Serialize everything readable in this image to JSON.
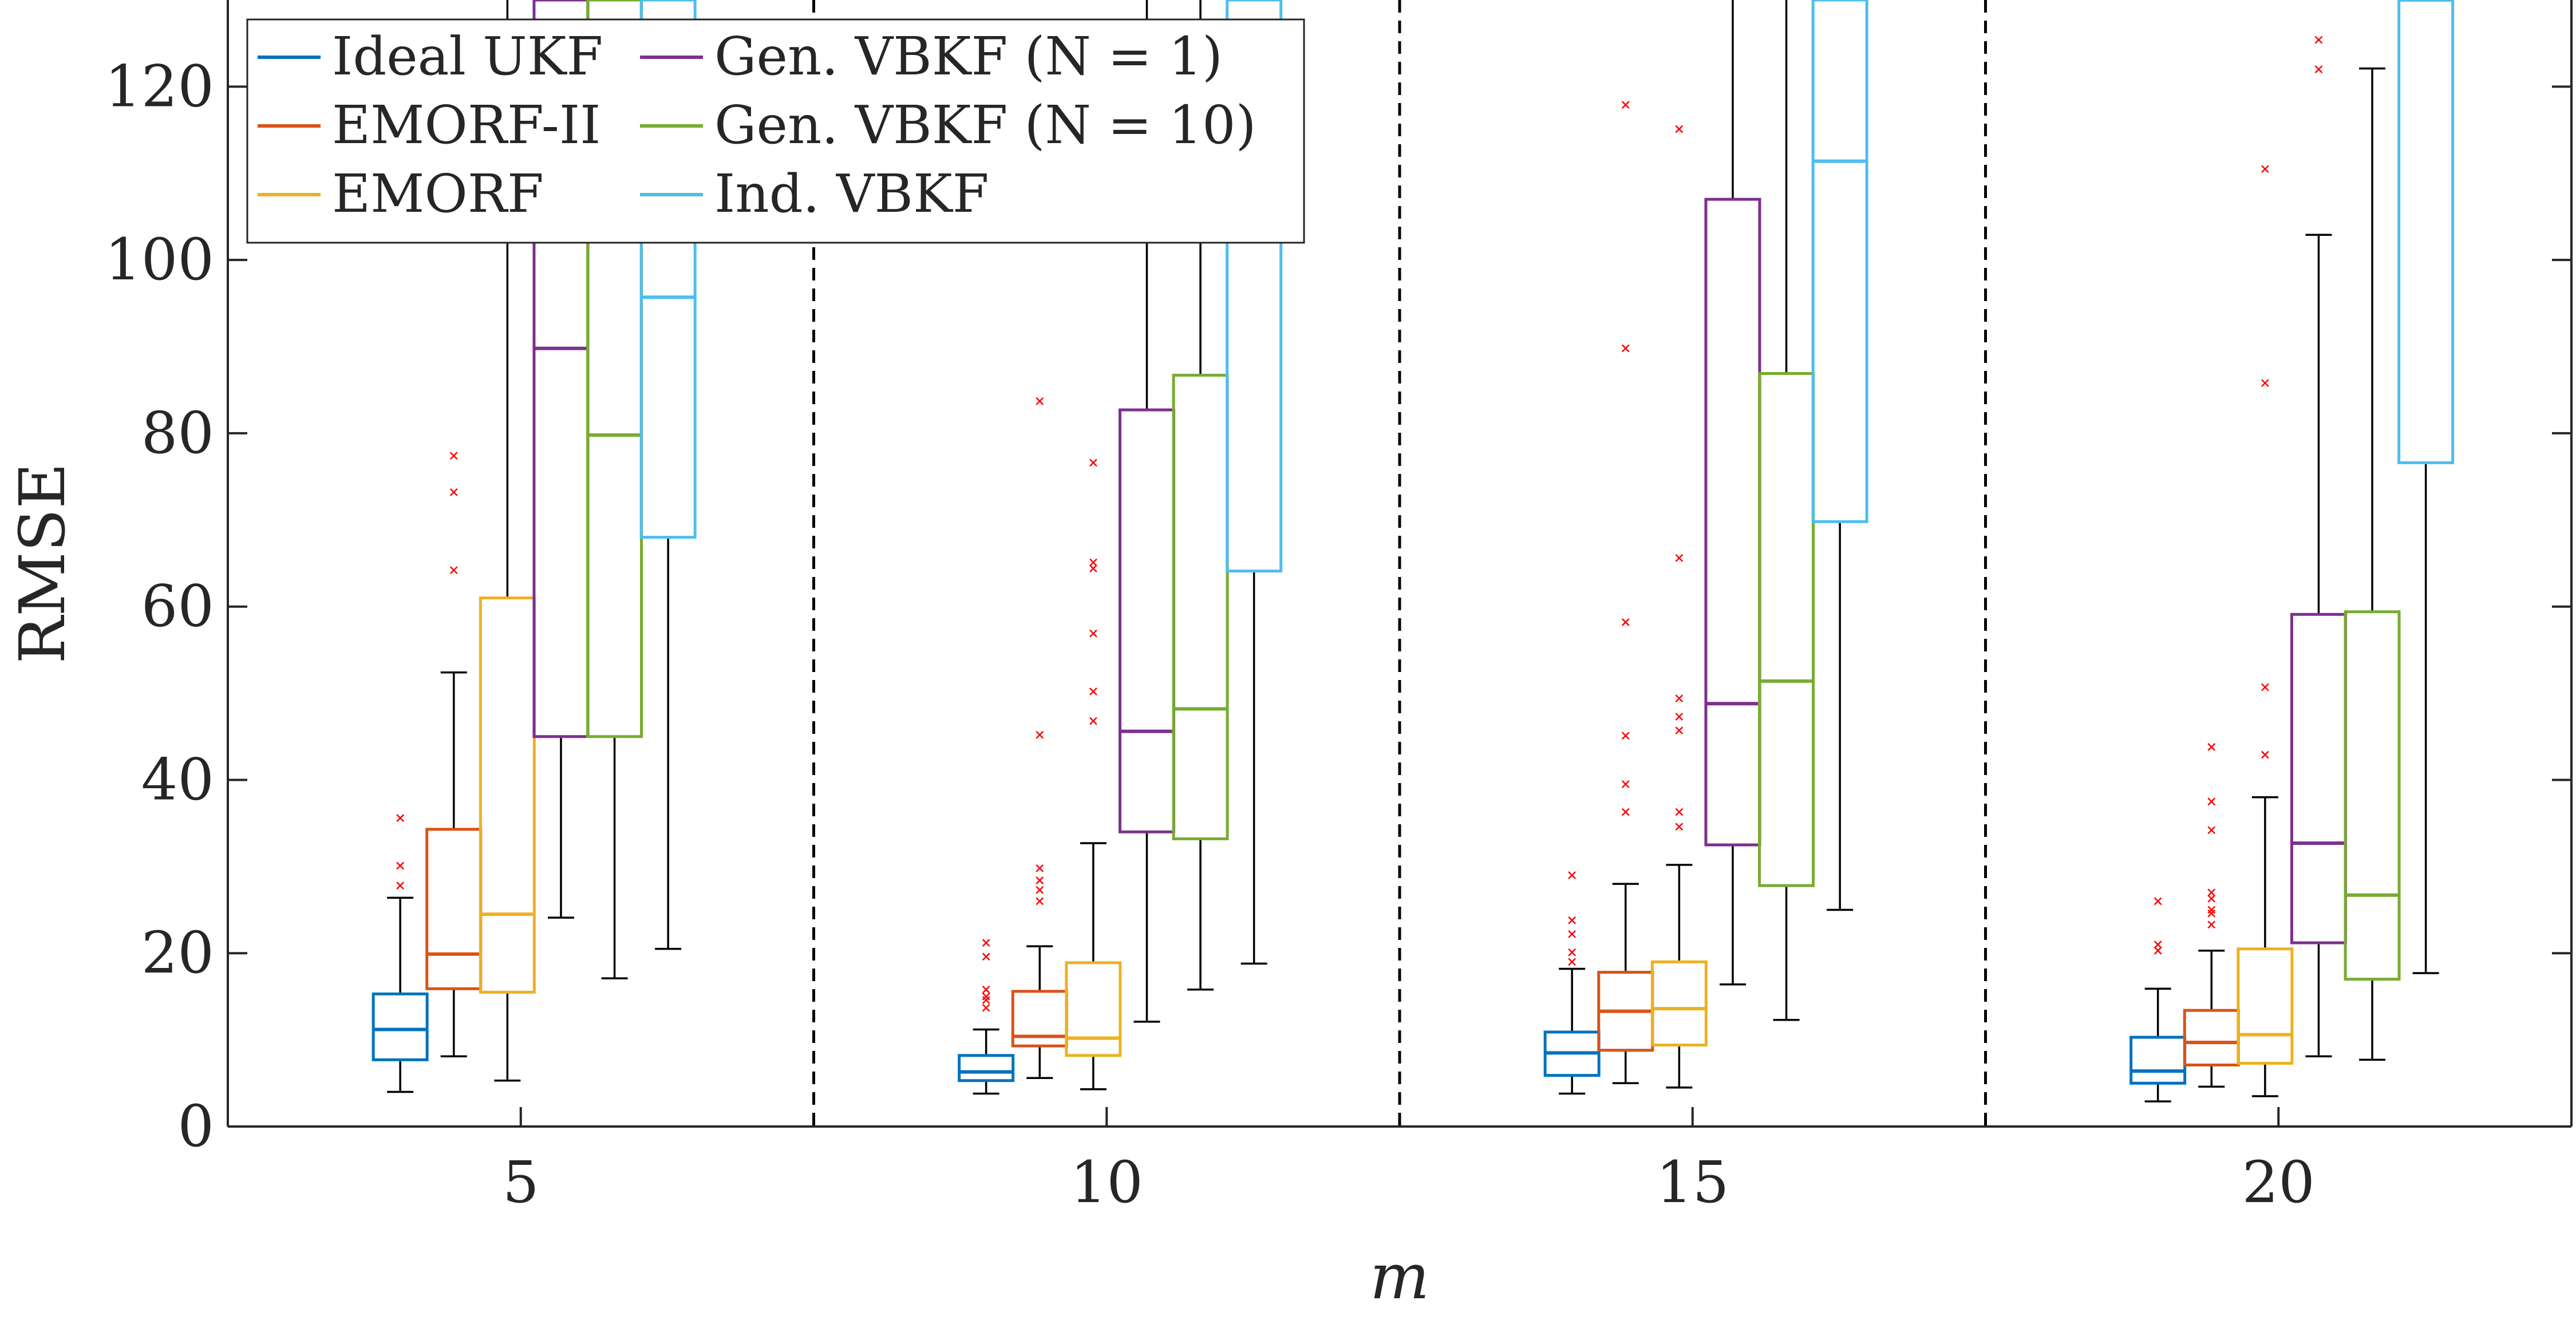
{
  "chart_data": {
    "type": "box",
    "xlabel": "m",
    "ylabel": "RMSE",
    "ylim": [
      0,
      130
    ],
    "yticks": [
      0,
      20,
      40,
      60,
      80,
      100,
      120
    ],
    "groups": [
      "5",
      "10",
      "15",
      "20"
    ],
    "separators_between_groups": true,
    "grid": false,
    "legend": {
      "placement": "top-left",
      "columns": 2
    },
    "series": [
      {
        "name": "Ideal UKF",
        "color": "#0072BD",
        "boxes": [
          {
            "lower_whisker": 4.0,
            "q1": 7.7,
            "median": 11.2,
            "q3": 15.3,
            "upper_whisker": 26.4,
            "outliers": [
              27.8,
              30.1,
              35.6
            ]
          },
          {
            "lower_whisker": 3.8,
            "q1": 5.3,
            "median": 6.3,
            "q3": 8.2,
            "upper_whisker": 11.2,
            "outliers": [
              13.7,
              14.6,
              15.0,
              15.8,
              19.6,
              21.2
            ]
          },
          {
            "lower_whisker": 3.8,
            "q1": 5.9,
            "median": 8.5,
            "q3": 10.9,
            "upper_whisker": 18.2,
            "outliers": [
              19.0,
              20.1,
              22.2,
              23.8,
              29.0
            ]
          },
          {
            "lower_whisker": 2.9,
            "q1": 5.0,
            "median": 6.4,
            "q3": 10.3,
            "upper_whisker": 15.9,
            "outliers": [
              20.3,
              21.0,
              26.0
            ]
          }
        ]
      },
      {
        "name": "EMORF-II",
        "color": "#D95319",
        "boxes": [
          {
            "lower_whisker": 8.1,
            "q1": 15.9,
            "median": 19.9,
            "q3": 34.3,
            "upper_whisker": 52.4,
            "outliers": [
              64.2,
              73.2,
              77.4
            ]
          },
          {
            "lower_whisker": 5.6,
            "q1": 9.3,
            "median": 10.4,
            "q3": 15.6,
            "upper_whisker": 20.8,
            "outliers": [
              26.0,
              27.3,
              28.4,
              29.8,
              45.2,
              83.7
            ]
          },
          {
            "lower_whisker": 5.0,
            "q1": 8.8,
            "median": 13.3,
            "q3": 17.8,
            "upper_whisker": 28.0,
            "outliers": [
              36.3,
              39.5,
              45.1,
              58.2,
              89.8,
              117.9
            ]
          },
          {
            "lower_whisker": 4.6,
            "q1": 7.1,
            "median": 9.7,
            "q3": 13.4,
            "upper_whisker": 20.3,
            "outliers": [
              23.3,
              24.6,
              25.0,
              26.3,
              27.0,
              34.2,
              37.5,
              43.8
            ]
          }
        ]
      },
      {
        "name": "EMORF",
        "color": "#EDB120",
        "boxes": [
          {
            "lower_whisker": 5.3,
            "q1": 15.5,
            "median": 24.5,
            "q3": 61.0,
            "upper_whisker": 130,
            "outliers": []
          },
          {
            "lower_whisker": 4.3,
            "q1": 8.2,
            "median": 10.2,
            "q3": 18.9,
            "upper_whisker": 32.7,
            "outliers": [
              46.8,
              50.2,
              56.9,
              64.4,
              65.1,
              76.6
            ]
          },
          {
            "lower_whisker": 4.5,
            "q1": 9.4,
            "median": 13.6,
            "q3": 19.0,
            "upper_whisker": 30.2,
            "outliers": [
              34.6,
              36.3,
              45.7,
              47.3,
              49.4,
              65.6,
              115.1
            ]
          },
          {
            "lower_whisker": 3.5,
            "q1": 7.3,
            "median": 10.6,
            "q3": 20.5,
            "upper_whisker": 38.0,
            "outliers": [
              42.9,
              50.7,
              85.8,
              110.5
            ]
          }
        ]
      },
      {
        "name": "Gen. VBKF (N = 1)",
        "color": "#7E2F8E",
        "boxes": [
          {
            "lower_whisker": 24.1,
            "q1": 45.0,
            "median": 89.8,
            "q3": 130,
            "upper_whisker": 130,
            "outliers": []
          },
          {
            "lower_whisker": 12.1,
            "q1": 34.0,
            "median": 45.6,
            "q3": 82.7,
            "upper_whisker": 130,
            "outliers": []
          },
          {
            "lower_whisker": 16.4,
            "q1": 32.5,
            "median": 48.8,
            "q3": 107.0,
            "upper_whisker": 130,
            "outliers": []
          },
          {
            "lower_whisker": 8.1,
            "q1": 21.2,
            "median": 32.7,
            "q3": 59.1,
            "upper_whisker": 102.9,
            "outliers": [
              122.0,
              125.4
            ]
          }
        ]
      },
      {
        "name": "Gen. VBKF (N = 10)",
        "color": "#77AC30",
        "boxes": [
          {
            "lower_whisker": 17.1,
            "q1": 45.0,
            "median": 79.8,
            "q3": 130,
            "upper_whisker": 130,
            "outliers": []
          },
          {
            "lower_whisker": 15.8,
            "q1": 33.2,
            "median": 48.2,
            "q3": 86.7,
            "upper_whisker": 130,
            "outliers": []
          },
          {
            "lower_whisker": 12.3,
            "q1": 27.8,
            "median": 51.4,
            "q3": 86.9,
            "upper_whisker": 130,
            "outliers": []
          },
          {
            "lower_whisker": 7.7,
            "q1": 17.0,
            "median": 26.7,
            "q3": 59.4,
            "upper_whisker": 122.1,
            "outliers": []
          }
        ]
      },
      {
        "name": "Ind. VBKF",
        "color": "#4DBEEE",
        "boxes": [
          {
            "lower_whisker": 20.5,
            "q1": 68.0,
            "median": 95.7,
            "q3": 130,
            "upper_whisker": 130,
            "outliers": []
          },
          {
            "lower_whisker": 18.8,
            "q1": 64.1,
            "median": 106.0,
            "q3": 130,
            "upper_whisker": 130,
            "outliers": []
          },
          {
            "lower_whisker": 25.0,
            "q1": 69.8,
            "median": 111.4,
            "q3": 130,
            "upper_whisker": 130,
            "outliers": []
          },
          {
            "lower_whisker": 17.7,
            "q1": 76.6,
            "median": 130,
            "q3": 130,
            "upper_whisker": 130,
            "outliers": []
          }
        ]
      }
    ]
  }
}
